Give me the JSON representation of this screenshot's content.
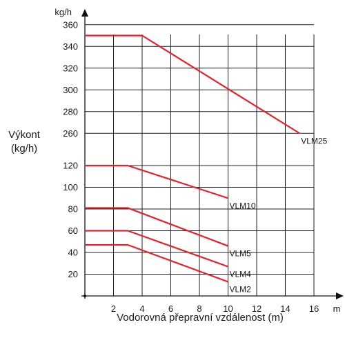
{
  "chart_data": {
    "type": "line",
    "ylabel_line1": "Výkont",
    "ylabel_line2": "(kg/h)",
    "xlabel": "Vodorovná přepravní vzdálenost (m)",
    "y_unit": "kg/h",
    "x_unit": "m",
    "x_ticks": [
      "2",
      "4",
      "6",
      "8",
      "10",
      "12",
      "14",
      "16"
    ],
    "y_ticks": [
      "20",
      "40",
      "60",
      "80",
      "100",
      "120",
      "260",
      "280",
      "300",
      "320",
      "340",
      "360"
    ],
    "xlim": [
      0,
      16
    ],
    "grid": true,
    "series_color": "#e8202a",
    "series": [
      {
        "name": "VLM25",
        "x": [
          0,
          4,
          15
        ],
        "y": [
          350,
          350,
          260
        ]
      },
      {
        "name": "VLM10",
        "x": [
          0,
          3,
          10
        ],
        "y": [
          120,
          120,
          90
        ]
      },
      {
        "name": "VLM5",
        "x": [
          0,
          3,
          10
        ],
        "y": [
          81,
          81,
          46
        ]
      },
      {
        "name": "VLM4",
        "x": [
          0,
          3,
          10
        ],
        "y": [
          60,
          60,
          27
        ]
      },
      {
        "name": "VLM2",
        "x": [
          0,
          3,
          10
        ],
        "y": [
          47,
          47,
          13
        ]
      }
    ]
  }
}
